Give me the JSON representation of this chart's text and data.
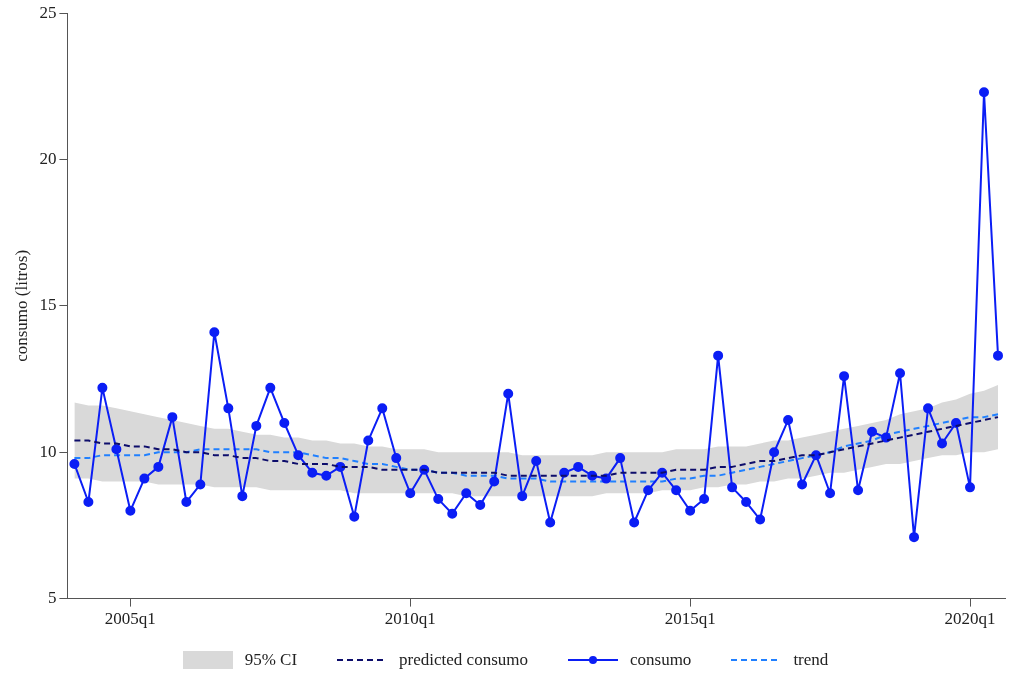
{
  "chart_data": {
    "type": "line",
    "ylabel": "consumo (litros)",
    "annotations": [
      "95% CI"
    ],
    "categories": [
      null,
      null,
      null,
      null,
      "2005q1",
      null,
      null,
      null,
      null,
      null,
      null,
      null,
      null,
      null,
      null,
      null,
      null,
      null,
      null,
      null,
      null,
      null,
      null,
      null,
      "2010q1",
      null,
      null,
      null,
      null,
      null,
      null,
      null,
      null,
      null,
      null,
      null,
      null,
      null,
      null,
      null,
      null,
      null,
      null,
      null,
      "2015q1",
      null,
      null,
      null,
      null,
      null,
      null,
      null,
      null,
      null,
      null,
      null,
      null,
      null,
      null,
      null,
      null,
      null,
      null,
      null,
      "2020q1",
      null,
      null
    ],
    "ylim": [
      5,
      25
    ],
    "yticks": [
      5,
      10,
      15,
      20,
      25
    ],
    "grid": false,
    "legend": "bottom",
    "series": [
      {
        "name": "predicted consumo",
        "color": "#0d0d6b",
        "line_style": "dashed",
        "marker": "none",
        "values": [
          10.4,
          10.4,
          10.3,
          10.3,
          10.2,
          10.2,
          10.1,
          10.1,
          10.0,
          10.0,
          9.9,
          9.9,
          9.8,
          9.8,
          9.7,
          9.7,
          9.6,
          9.6,
          9.6,
          9.5,
          9.5,
          9.5,
          9.4,
          9.4,
          9.4,
          9.4,
          9.3,
          9.3,
          9.3,
          9.3,
          9.3,
          9.2,
          9.2,
          9.2,
          9.2,
          9.2,
          9.2,
          9.2,
          9.2,
          9.3,
          9.3,
          9.3,
          9.3,
          9.4,
          9.4,
          9.4,
          9.5,
          9.5,
          9.6,
          9.7,
          9.7,
          9.8,
          9.9,
          9.9,
          10.0,
          10.1,
          10.2,
          10.3,
          10.4,
          10.5,
          10.6,
          10.7,
          10.8,
          10.9,
          11.0,
          11.1,
          11.2
        ],
        "lower": [
          9.1,
          9.1,
          9.0,
          9.0,
          9.0,
          9.0,
          8.9,
          8.9,
          8.9,
          8.9,
          8.8,
          8.8,
          8.8,
          8.8,
          8.7,
          8.7,
          8.7,
          8.7,
          8.7,
          8.7,
          8.6,
          8.6,
          8.6,
          8.6,
          8.6,
          8.6,
          8.6,
          8.6,
          8.5,
          8.5,
          8.5,
          8.5,
          8.5,
          8.5,
          8.5,
          8.5,
          8.5,
          8.5,
          8.6,
          8.6,
          8.6,
          8.6,
          8.7,
          8.7,
          8.7,
          8.8,
          8.8,
          8.9,
          8.9,
          9.0,
          9.0,
          9.1,
          9.1,
          9.2,
          9.3,
          9.3,
          9.4,
          9.5,
          9.6,
          9.6,
          9.7,
          9.8,
          9.9,
          9.9,
          10.0,
          10.0,
          10.1
        ],
        "upper": [
          11.7,
          11.6,
          11.6,
          11.5,
          11.4,
          11.3,
          11.2,
          11.1,
          11.0,
          10.9,
          10.8,
          10.8,
          10.7,
          10.6,
          10.6,
          10.5,
          10.5,
          10.4,
          10.4,
          10.3,
          10.3,
          10.2,
          10.2,
          10.1,
          10.1,
          10.1,
          10.0,
          10.0,
          10.0,
          10.0,
          10.0,
          10.0,
          9.9,
          9.9,
          9.9,
          9.9,
          9.9,
          9.9,
          10.0,
          10.0,
          10.0,
          10.0,
          10.0,
          10.1,
          10.1,
          10.1,
          10.2,
          10.2,
          10.2,
          10.3,
          10.4,
          10.4,
          10.5,
          10.6,
          10.7,
          10.8,
          10.9,
          11.0,
          11.1,
          11.3,
          11.4,
          11.5,
          11.7,
          11.8,
          12.0,
          12.1,
          12.3
        ]
      },
      {
        "name": "consumo",
        "color": "#0b1ef5",
        "line_style": "solid",
        "marker": "circle",
        "values": [
          9.6,
          8.3,
          12.2,
          10.1,
          8.0,
          9.1,
          9.5,
          11.2,
          8.3,
          8.9,
          14.1,
          11.5,
          8.5,
          10.9,
          12.2,
          11.0,
          9.9,
          9.3,
          9.2,
          9.5,
          7.8,
          10.4,
          11.5,
          9.8,
          8.6,
          9.4,
          8.4,
          7.9,
          8.6,
          8.2,
          9.0,
          12.0,
          8.5,
          9.7,
          7.6,
          9.3,
          9.5,
          9.2,
          9.1,
          9.8,
          7.6,
          8.7,
          9.3,
          8.7,
          8.0,
          8.4,
          13.3,
          8.8,
          8.3,
          7.7,
          10.0,
          11.1,
          8.9,
          9.9,
          8.6,
          12.6,
          8.7,
          10.7,
          10.5,
          12.7,
          7.1,
          11.5,
          10.3,
          11.0,
          8.8,
          22.3,
          13.3
        ]
      },
      {
        "name": "trend",
        "color": "#2080ff",
        "line_style": "dashed",
        "marker": "none",
        "values": [
          9.8,
          9.8,
          9.9,
          9.9,
          9.9,
          9.9,
          10.0,
          10.0,
          10.0,
          10.1,
          10.1,
          10.1,
          10.1,
          10.1,
          10.0,
          10.0,
          10.0,
          9.9,
          9.8,
          9.8,
          9.7,
          9.6,
          9.6,
          9.5,
          9.4,
          9.4,
          9.3,
          9.3,
          9.2,
          9.2,
          9.2,
          9.1,
          9.1,
          9.1,
          9.0,
          9.0,
          9.0,
          9.0,
          9.0,
          9.0,
          9.0,
          9.0,
          9.0,
          9.1,
          9.1,
          9.2,
          9.2,
          9.3,
          9.4,
          9.5,
          9.6,
          9.7,
          9.8,
          9.9,
          10.0,
          10.2,
          10.3,
          10.4,
          10.6,
          10.7,
          10.8,
          10.9,
          11.0,
          11.1,
          11.2,
          11.2,
          11.3
        ]
      }
    ]
  }
}
